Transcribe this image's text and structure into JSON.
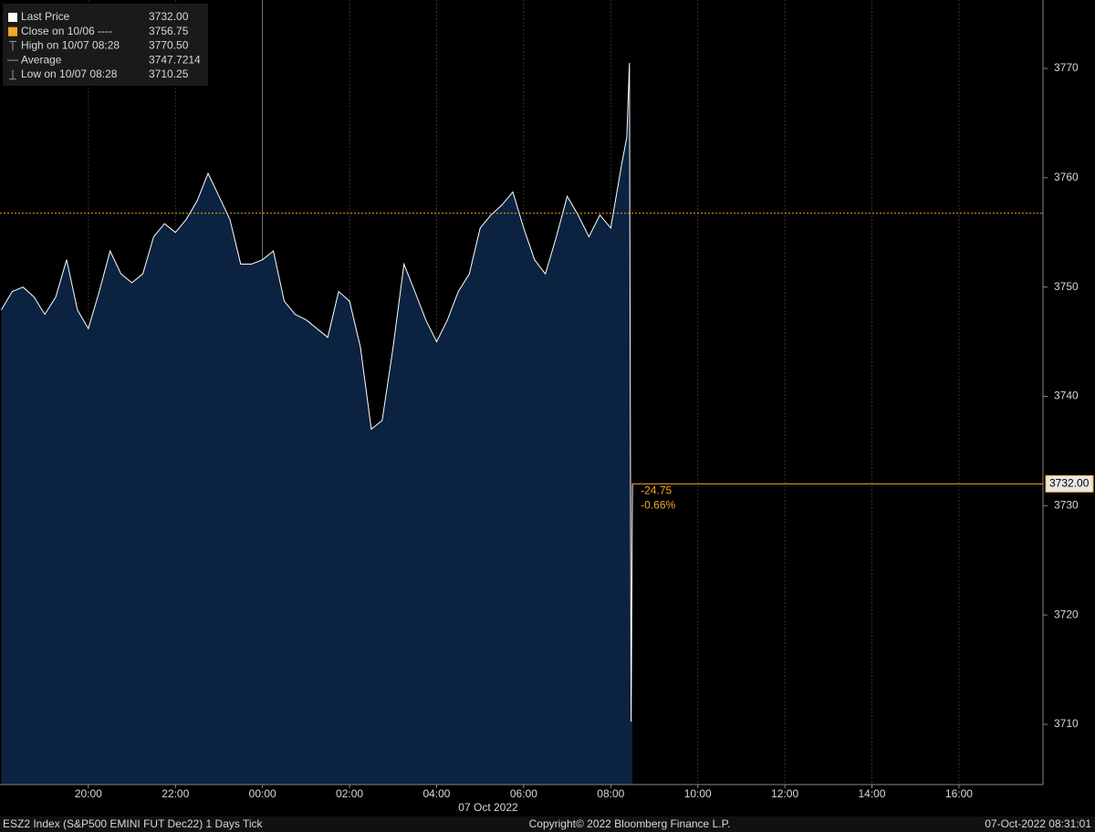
{
  "chart_data": {
    "type": "area",
    "xlabel": "07 Oct 2022",
    "series": [
      {
        "name": "Last Price",
        "color": "#ffffff",
        "fill": "#0b2240",
        "x": [
          18.0,
          18.25,
          18.5,
          18.75,
          19.0,
          19.25,
          19.5,
          19.75,
          20.0,
          20.25,
          20.5,
          20.75,
          21.0,
          21.25,
          21.5,
          21.75,
          22.0,
          22.25,
          22.5,
          22.75,
          23.0,
          23.25,
          23.5,
          23.75,
          24.0,
          24.25,
          24.5,
          24.75,
          25.0,
          25.25,
          25.5,
          25.75,
          26.0,
          26.25,
          26.5,
          26.75,
          27.0,
          27.25,
          27.5,
          27.75,
          28.0,
          28.25,
          28.5,
          28.75,
          29.0,
          29.25,
          29.5,
          29.75,
          30.0,
          30.25,
          30.5,
          30.75,
          31.0,
          31.25,
          31.5,
          31.75,
          32.0,
          32.25,
          32.37,
          32.43,
          32.467,
          32.5
        ],
        "values": [
          3747.9,
          3749.6,
          3750,
          3749.1,
          3747.5,
          3749.1,
          3752.5,
          3747.9,
          3746.2,
          3749.6,
          3753.3,
          3751.2,
          3750.4,
          3751.2,
          3754.6,
          3755.8,
          3755,
          3756.2,
          3757.9,
          3760.4,
          3758.3,
          3756.2,
          3752.1,
          3752.1,
          3752.5,
          3753.3,
          3748.7,
          3747.5,
          3747,
          3746.2,
          3745.4,
          3749.6,
          3748.7,
          3744.5,
          3737,
          3737.8,
          3744.5,
          3752.1,
          3749.6,
          3747,
          3745,
          3747,
          3749.6,
          3751.2,
          3755.4,
          3756.6,
          3757.5,
          3758.7,
          3755.4,
          3752.5,
          3751.2,
          3754.6,
          3758.3,
          3756.6,
          3754.6,
          3756.6,
          3755.4,
          3761.2,
          3763.7,
          3770.5,
          3710.25,
          3732
        ]
      }
    ],
    "legend": [
      {
        "label": "Last Price",
        "value": {
          "value": 3732,
          "label": "3732.00"
        },
        "color": "#ffffff"
      },
      {
        "label": "Close on 10/06 ----",
        "value": 3756.75,
        "color": "#f5a623"
      },
      {
        "label": "High on 10/07 08:28",
        "value": {
          "value": 3770.5,
          "label": "3770.50"
        },
        "color": "#9a9a9a"
      },
      {
        "label": "Average",
        "value": 3747.7214,
        "color": "#9a9a9a"
      },
      {
        "label": "Low on 10/07 08:28",
        "value": 3710.25,
        "color": "#9a9a9a"
      }
    ],
    "last_price_label": "3732.00",
    "change": -24.75,
    "change_pct": {
      "value": -0.66,
      "label": "-0.66%"
    },
    "xlim": [
      17.97,
      41.93
    ],
    "xticks": [
      {
        "value": 20,
        "label": "20:00"
      },
      {
        "value": 22,
        "label": "22:00"
      },
      {
        "value": 24,
        "label": "00:00"
      },
      {
        "value": 26,
        "label": "02:00"
      },
      {
        "value": 28,
        "label": "04:00"
      },
      {
        "value": 30,
        "label": "06:00"
      },
      {
        "value": 32,
        "label": "08:00"
      },
      {
        "value": 34,
        "label": "10:00"
      },
      {
        "value": 36,
        "label": "12:00"
      },
      {
        "value": 38,
        "label": "14:00"
      },
      {
        "value": 40,
        "label": "16:00"
      }
    ],
    "ylim": [
      3704.49,
      3776.26
    ],
    "yticks": [
      3710,
      3720,
      3730,
      3740,
      3750,
      3760,
      3770
    ],
    "grid": true
  },
  "footer": {
    "left": "ESZ2 Index (S&P500 EMINI FUT  Dec22) 1 Days  Tick",
    "center": "Copyright© 2022 Bloomberg Finance L.P.",
    "right": "07-Oct-2022 08:31:01"
  }
}
